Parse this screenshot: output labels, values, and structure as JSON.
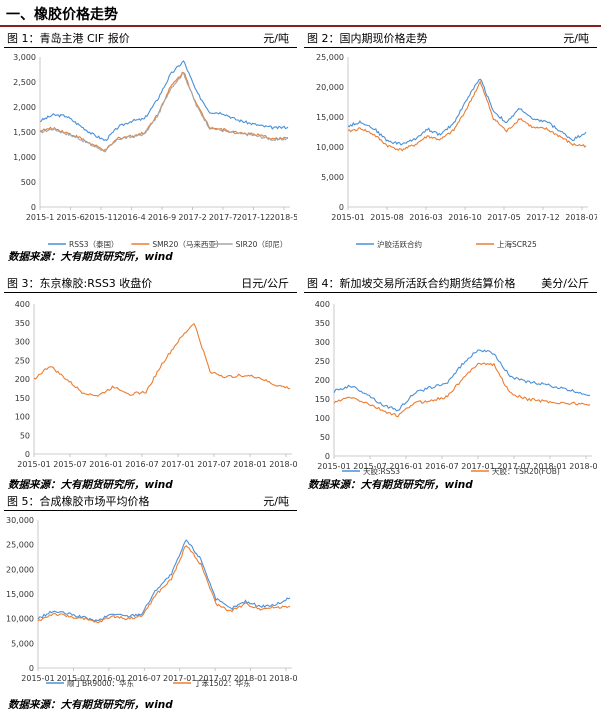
{
  "section_title": "一、橡胶价格走势",
  "colors": {
    "blue": "#4a90d9",
    "orange": "#ed7d31",
    "gray": "#a5a5a5",
    "rule": "#8b1e1e"
  },
  "charts": [
    {
      "title": "图 1：青岛主港 CIF 报价",
      "unit": "元/吨",
      "source": "数据来源：大有期货研究所，wind"
    },
    {
      "title": "图 2：国内期现价格走势",
      "unit": "元/吨",
      "source": ""
    },
    {
      "title": "图 3：东京橡胶:RSS3 收盘价",
      "unit": "日元/公斤",
      "source": "数据来源：大有期货研究所，wind"
    },
    {
      "title": "图 4：新加坡交易所活跃合约期货结算价格",
      "unit": "美分/公斤",
      "source": "数据来源：大有期货研究所，wind"
    },
    {
      "title": "图 5：合成橡胶市场平均价格",
      "unit": "元/吨",
      "source": "数据来源：大有期货研究所，wind"
    }
  ],
  "chart_data": [
    {
      "type": "line",
      "xlabel": "",
      "ylabel": "",
      "ylim": [
        0,
        3000
      ],
      "yticks": [
        "0",
        "500",
        "1,000",
        "1,500",
        "2,000",
        "2,500",
        "3,000"
      ],
      "xticks": [
        "2015-1",
        "2015-6",
        "2015-11",
        "2016-4",
        "2016-9",
        "2017-2",
        "2017-7",
        "2017-12",
        "2018-5"
      ],
      "legend_position": "bottom",
      "x": [
        "2015-1",
        "2015-3",
        "2015-6",
        "2015-9",
        "2015-11",
        "2016-2",
        "2016-4",
        "2016-7",
        "2016-9",
        "2016-11",
        "2017-1",
        "2017-2",
        "2017-3",
        "2017-5",
        "2017-7",
        "2017-10",
        "2017-12",
        "2018-3",
        "2018-5",
        "2018-7"
      ],
      "series": [
        {
          "name": "RSS3（泰国）",
          "color": "#4a90d9",
          "values": [
            1720,
            1840,
            1820,
            1640,
            1460,
            1330,
            1600,
            1720,
            1760,
            2150,
            2650,
            2920,
            2300,
            1900,
            1880,
            1750,
            1680,
            1620,
            1580,
            1600
          ]
        },
        {
          "name": "SMR20（马来西亚）",
          "color": "#ed7d31",
          "values": [
            1520,
            1580,
            1490,
            1390,
            1250,
            1130,
            1380,
            1420,
            1480,
            1850,
            2400,
            2710,
            2050,
            1600,
            1550,
            1490,
            1470,
            1420,
            1360,
            1390
          ]
        },
        {
          "name": "SIR20（印尼）",
          "color": "#a5a5a5",
          "values": [
            1500,
            1560,
            1470,
            1370,
            1230,
            1120,
            1360,
            1400,
            1460,
            1820,
            2370,
            2680,
            2020,
            1580,
            1530,
            1470,
            1450,
            1400,
            1340,
            1370
          ]
        }
      ]
    },
    {
      "type": "line",
      "ylim": [
        0,
        25000
      ],
      "yticks": [
        "0",
        "5,000",
        "10,000",
        "15,000",
        "20,000",
        "25,000"
      ],
      "xticks": [
        "2015-01",
        "2015-08",
        "2016-03",
        "2016-10",
        "2017-05",
        "2017-12",
        "2018-07"
      ],
      "legend_position": "bottom",
      "x": [
        "2015-01",
        "2015-04",
        "2015-08",
        "2015-11",
        "2016-01",
        "2016-03",
        "2016-06",
        "2016-08",
        "2016-10",
        "2016-12",
        "2017-02",
        "2017-04",
        "2017-05",
        "2017-08",
        "2017-10",
        "2017-12",
        "2018-02",
        "2018-05",
        "2018-07"
      ],
      "series": [
        {
          "name": "沪胶活跃合约",
          "color": "#4a90d9",
          "values": [
            13500,
            14200,
            13000,
            11000,
            10500,
            11200,
            13000,
            12000,
            14000,
            18000,
            21500,
            16000,
            14000,
            16500,
            14500,
            14300,
            12700,
            11200,
            12500
          ]
        },
        {
          "name": "上海SCR25",
          "color": "#ed7d31",
          "values": [
            12600,
            13100,
            12000,
            10200,
            9500,
            10300,
            11800,
            11200,
            12800,
            16500,
            20800,
            14800,
            12600,
            14800,
            13200,
            13000,
            11800,
            10400,
            10200
          ]
        }
      ]
    },
    {
      "type": "line",
      "ylim": [
        0,
        400
      ],
      "yticks": [
        "0",
        "50",
        "100",
        "150",
        "200",
        "250",
        "300",
        "350",
        "400"
      ],
      "xticks": [
        "2015-01",
        "2015-07",
        "2016-01",
        "2016-07",
        "2017-01",
        "2017-07",
        "2018-01",
        "2018-07"
      ],
      "x": [
        "2015-01",
        "2015-05",
        "2015-07",
        "2015-10",
        "2016-01",
        "2016-04",
        "2016-06",
        "2016-09",
        "2016-11",
        "2017-01",
        "2017-02",
        "2017-04",
        "2017-07",
        "2017-10",
        "2018-01",
        "2018-04",
        "2018-07"
      ],
      "series": [
        {
          "name": "RSS3",
          "color": "#ed7d31",
          "values": [
            200,
            235,
            200,
            165,
            155,
            180,
            160,
            165,
            240,
            300,
            350,
            220,
            205,
            210,
            205,
            185,
            175
          ]
        }
      ]
    },
    {
      "type": "line",
      "ylim": [
        0,
        400
      ],
      "yticks": [
        "0",
        "50",
        "100",
        "150",
        "200",
        "250",
        "300",
        "350",
        "400"
      ],
      "xticks": [
        "2015-01",
        "2015-07",
        "2016-01",
        "2016-07",
        "2017-01",
        "2017-07",
        "2018-01",
        "2018-07"
      ],
      "legend_position": "bottom",
      "x": [
        "2015-01",
        "2015-04",
        "2015-07",
        "2015-10",
        "2016-01",
        "2016-04",
        "2016-07",
        "2016-10",
        "2016-12",
        "2017-01",
        "2017-02",
        "2017-04",
        "2017-07",
        "2017-10",
        "2018-01",
        "2018-04",
        "2018-07"
      ],
      "series": [
        {
          "name": "天胶:RSS3",
          "color": "#4a90d9",
          "values": [
            170,
            185,
            165,
            135,
            120,
            165,
            180,
            190,
            240,
            280,
            270,
            210,
            195,
            190,
            180,
            170,
            160
          ]
        },
        {
          "name": "天胶：TSR20(FOB)",
          "color": "#ed7d31",
          "values": [
            140,
            155,
            140,
            120,
            105,
            140,
            145,
            155,
            200,
            245,
            240,
            165,
            150,
            145,
            140,
            138,
            135
          ]
        }
      ]
    },
    {
      "type": "line",
      "ylim": [
        0,
        30000
      ],
      "yticks": [
        "0",
        "5,000",
        "10,000",
        "15,000",
        "20,000",
        "25,000",
        "30,000"
      ],
      "xticks": [
        "2015-01",
        "2015-07",
        "2016-01",
        "2016-07",
        "2017-01",
        "2017-07",
        "2018-01",
        "2018-07"
      ],
      "legend_position": "bottom",
      "x": [
        "2015-01",
        "2015-04",
        "2015-07",
        "2015-10",
        "2016-01",
        "2016-04",
        "2016-07",
        "2016-09",
        "2016-11",
        "2016-12",
        "2017-01",
        "2017-02",
        "2017-04",
        "2017-07",
        "2017-10",
        "2018-01",
        "2018-04",
        "2018-07"
      ],
      "series": [
        {
          "name": "顺丁BR9000：华东",
          "color": "#4a90d9",
          "values": [
            10000,
            11500,
            11000,
            10300,
            9500,
            11000,
            10500,
            11000,
            16000,
            19000,
            26000,
            22000,
            14000,
            12000,
            13500,
            12500,
            12800,
            14200
          ]
        },
        {
          "name": "丁苯1502：华东",
          "color": "#ed7d31",
          "values": [
            9500,
            11000,
            10500,
            10000,
            9200,
            10500,
            10000,
            10500,
            15000,
            18000,
            25000,
            21000,
            13000,
            11500,
            13000,
            12000,
            12300,
            12500
          ]
        }
      ]
    }
  ]
}
